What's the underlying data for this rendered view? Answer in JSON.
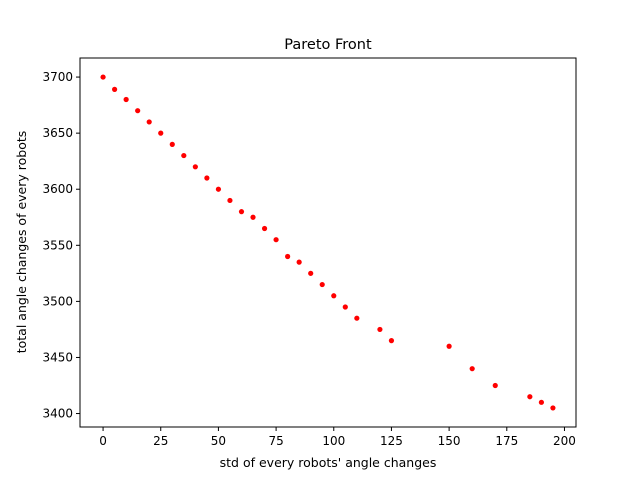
{
  "chart_data": {
    "type": "scatter",
    "title": "Pareto Front",
    "xlabel": "std of every robots' angle changes",
    "ylabel": "total angle changes of every robots",
    "xlim": [
      -10,
      205
    ],
    "ylim": [
      3388,
      3717
    ],
    "xticks": [
      0,
      25,
      50,
      75,
      100,
      125,
      150,
      175,
      200
    ],
    "yticks": [
      3400,
      3450,
      3500,
      3550,
      3600,
      3650,
      3700
    ],
    "grid": false,
    "marker_color": "#ff0000",
    "points": [
      [
        0,
        3700
      ],
      [
        5,
        3689
      ],
      [
        10,
        3680
      ],
      [
        15,
        3670
      ],
      [
        20,
        3660
      ],
      [
        25,
        3650
      ],
      [
        30,
        3640
      ],
      [
        35,
        3630
      ],
      [
        40,
        3620
      ],
      [
        45,
        3610
      ],
      [
        50,
        3600
      ],
      [
        55,
        3590
      ],
      [
        60,
        3580
      ],
      [
        65,
        3575
      ],
      [
        70,
        3565
      ],
      [
        75,
        3555
      ],
      [
        80,
        3540
      ],
      [
        85,
        3535
      ],
      [
        90,
        3525
      ],
      [
        95,
        3515
      ],
      [
        100,
        3505
      ],
      [
        105,
        3495
      ],
      [
        110,
        3485
      ],
      [
        120,
        3475
      ],
      [
        125,
        3465
      ],
      [
        150,
        3460
      ],
      [
        160,
        3440
      ],
      [
        170,
        3425
      ],
      [
        185,
        3415
      ],
      [
        190,
        3410
      ],
      [
        195,
        3405
      ]
    ]
  }
}
